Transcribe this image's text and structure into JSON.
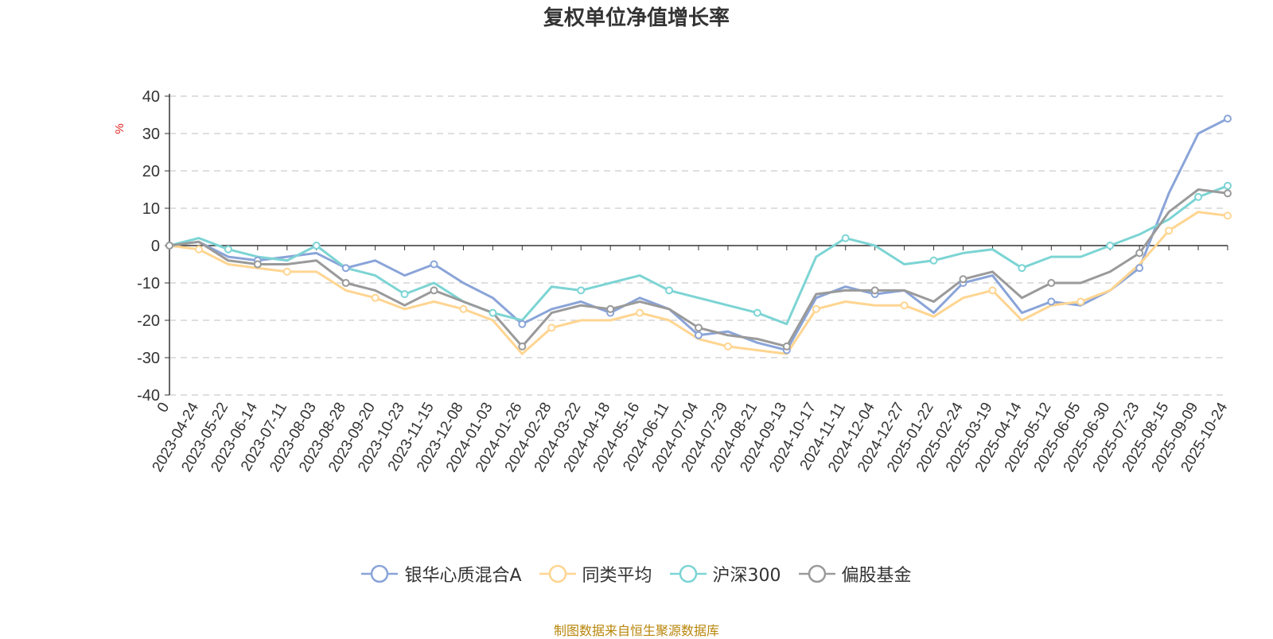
{
  "chart_data": {
    "type": "line",
    "title": "复权单位净值增长率",
    "ylabel": "%",
    "ylim": [
      -40,
      40
    ],
    "yticks": [
      40,
      30,
      20,
      10,
      0,
      -10,
      -20,
      -30,
      -40
    ],
    "grid": true,
    "legend_position": "bottom",
    "x_ticks": [
      "0",
      "2023-04-24",
      "2023-05-22",
      "2023-06-14",
      "2023-07-11",
      "2023-08-03",
      "2023-08-28",
      "2023-09-20",
      "2023-10-23",
      "2023-11-15",
      "2023-12-08",
      "2024-01-03",
      "2024-01-26",
      "2024-02-28",
      "2024-03-22",
      "2024-04-18",
      "2024-05-16",
      "2024-06-11",
      "2024-07-04",
      "2024-07-29",
      "2024-08-21",
      "2024-09-13",
      "2024-10-17",
      "2024-11-11",
      "2024-12-04",
      "2024-12-27",
      "2025-01-22",
      "2025-02-24",
      "2025-03-19",
      "2025-04-14",
      "2025-05-12",
      "2025-06-05",
      "2025-06-30",
      "2025-07-23",
      "2025-08-15",
      "2025-09-09",
      "2025-10-24"
    ],
    "series": [
      {
        "name": "银华心质混合A",
        "color": "#8aa4d8",
        "values": [
          0,
          1,
          -3,
          -4,
          -3,
          -2,
          -6,
          -4,
          -8,
          -5,
          -10,
          -14,
          -21,
          -17,
          -15,
          -18,
          -14,
          -17,
          -24,
          -23,
          -26,
          -28,
          -14,
          -11,
          -13,
          -12,
          -18,
          -10,
          -8,
          -18,
          -15,
          -16,
          -12,
          -6,
          14,
          30,
          34
        ]
      },
      {
        "name": "同类平均",
        "color": "#ffd591",
        "values": [
          0,
          -1,
          -5,
          -6,
          -7,
          -7,
          -12,
          -14,
          -17,
          -15,
          -17,
          -20,
          -29,
          -22,
          -20,
          -20,
          -18,
          -20,
          -25,
          -27,
          -28,
          -29,
          -17,
          -15,
          -16,
          -16,
          -19,
          -14,
          -12,
          -20,
          -16,
          -15,
          -12,
          -5,
          4,
          9,
          8
        ]
      },
      {
        "name": "沪深300",
        "color": "#7dd4d4",
        "values": [
          0,
          2,
          -1,
          -3,
          -4,
          0,
          -6,
          -8,
          -13,
          -10,
          -15,
          -18,
          -20,
          -11,
          -12,
          -10,
          -8,
          -12,
          -14,
          -16,
          -18,
          -21,
          -3,
          2,
          0,
          -5,
          -4,
          -2,
          -1,
          -6,
          -3,
          -3,
          0,
          3,
          7,
          13,
          16
        ]
      },
      {
        "name": "偏股基金",
        "color": "#9a9a9a",
        "values": [
          0,
          1,
          -4,
          -5,
          -5,
          -4,
          -10,
          -12,
          -16,
          -12,
          -15,
          -18,
          -27,
          -18,
          -16,
          -17,
          -15,
          -17,
          -22,
          -24,
          -25,
          -27,
          -13,
          -12,
          -12,
          -12,
          -15,
          -9,
          -7,
          -14,
          -10,
          -10,
          -7,
          -2,
          9,
          15,
          14
        ]
      }
    ]
  },
  "footer": "制图数据来自恒生聚源数据库"
}
